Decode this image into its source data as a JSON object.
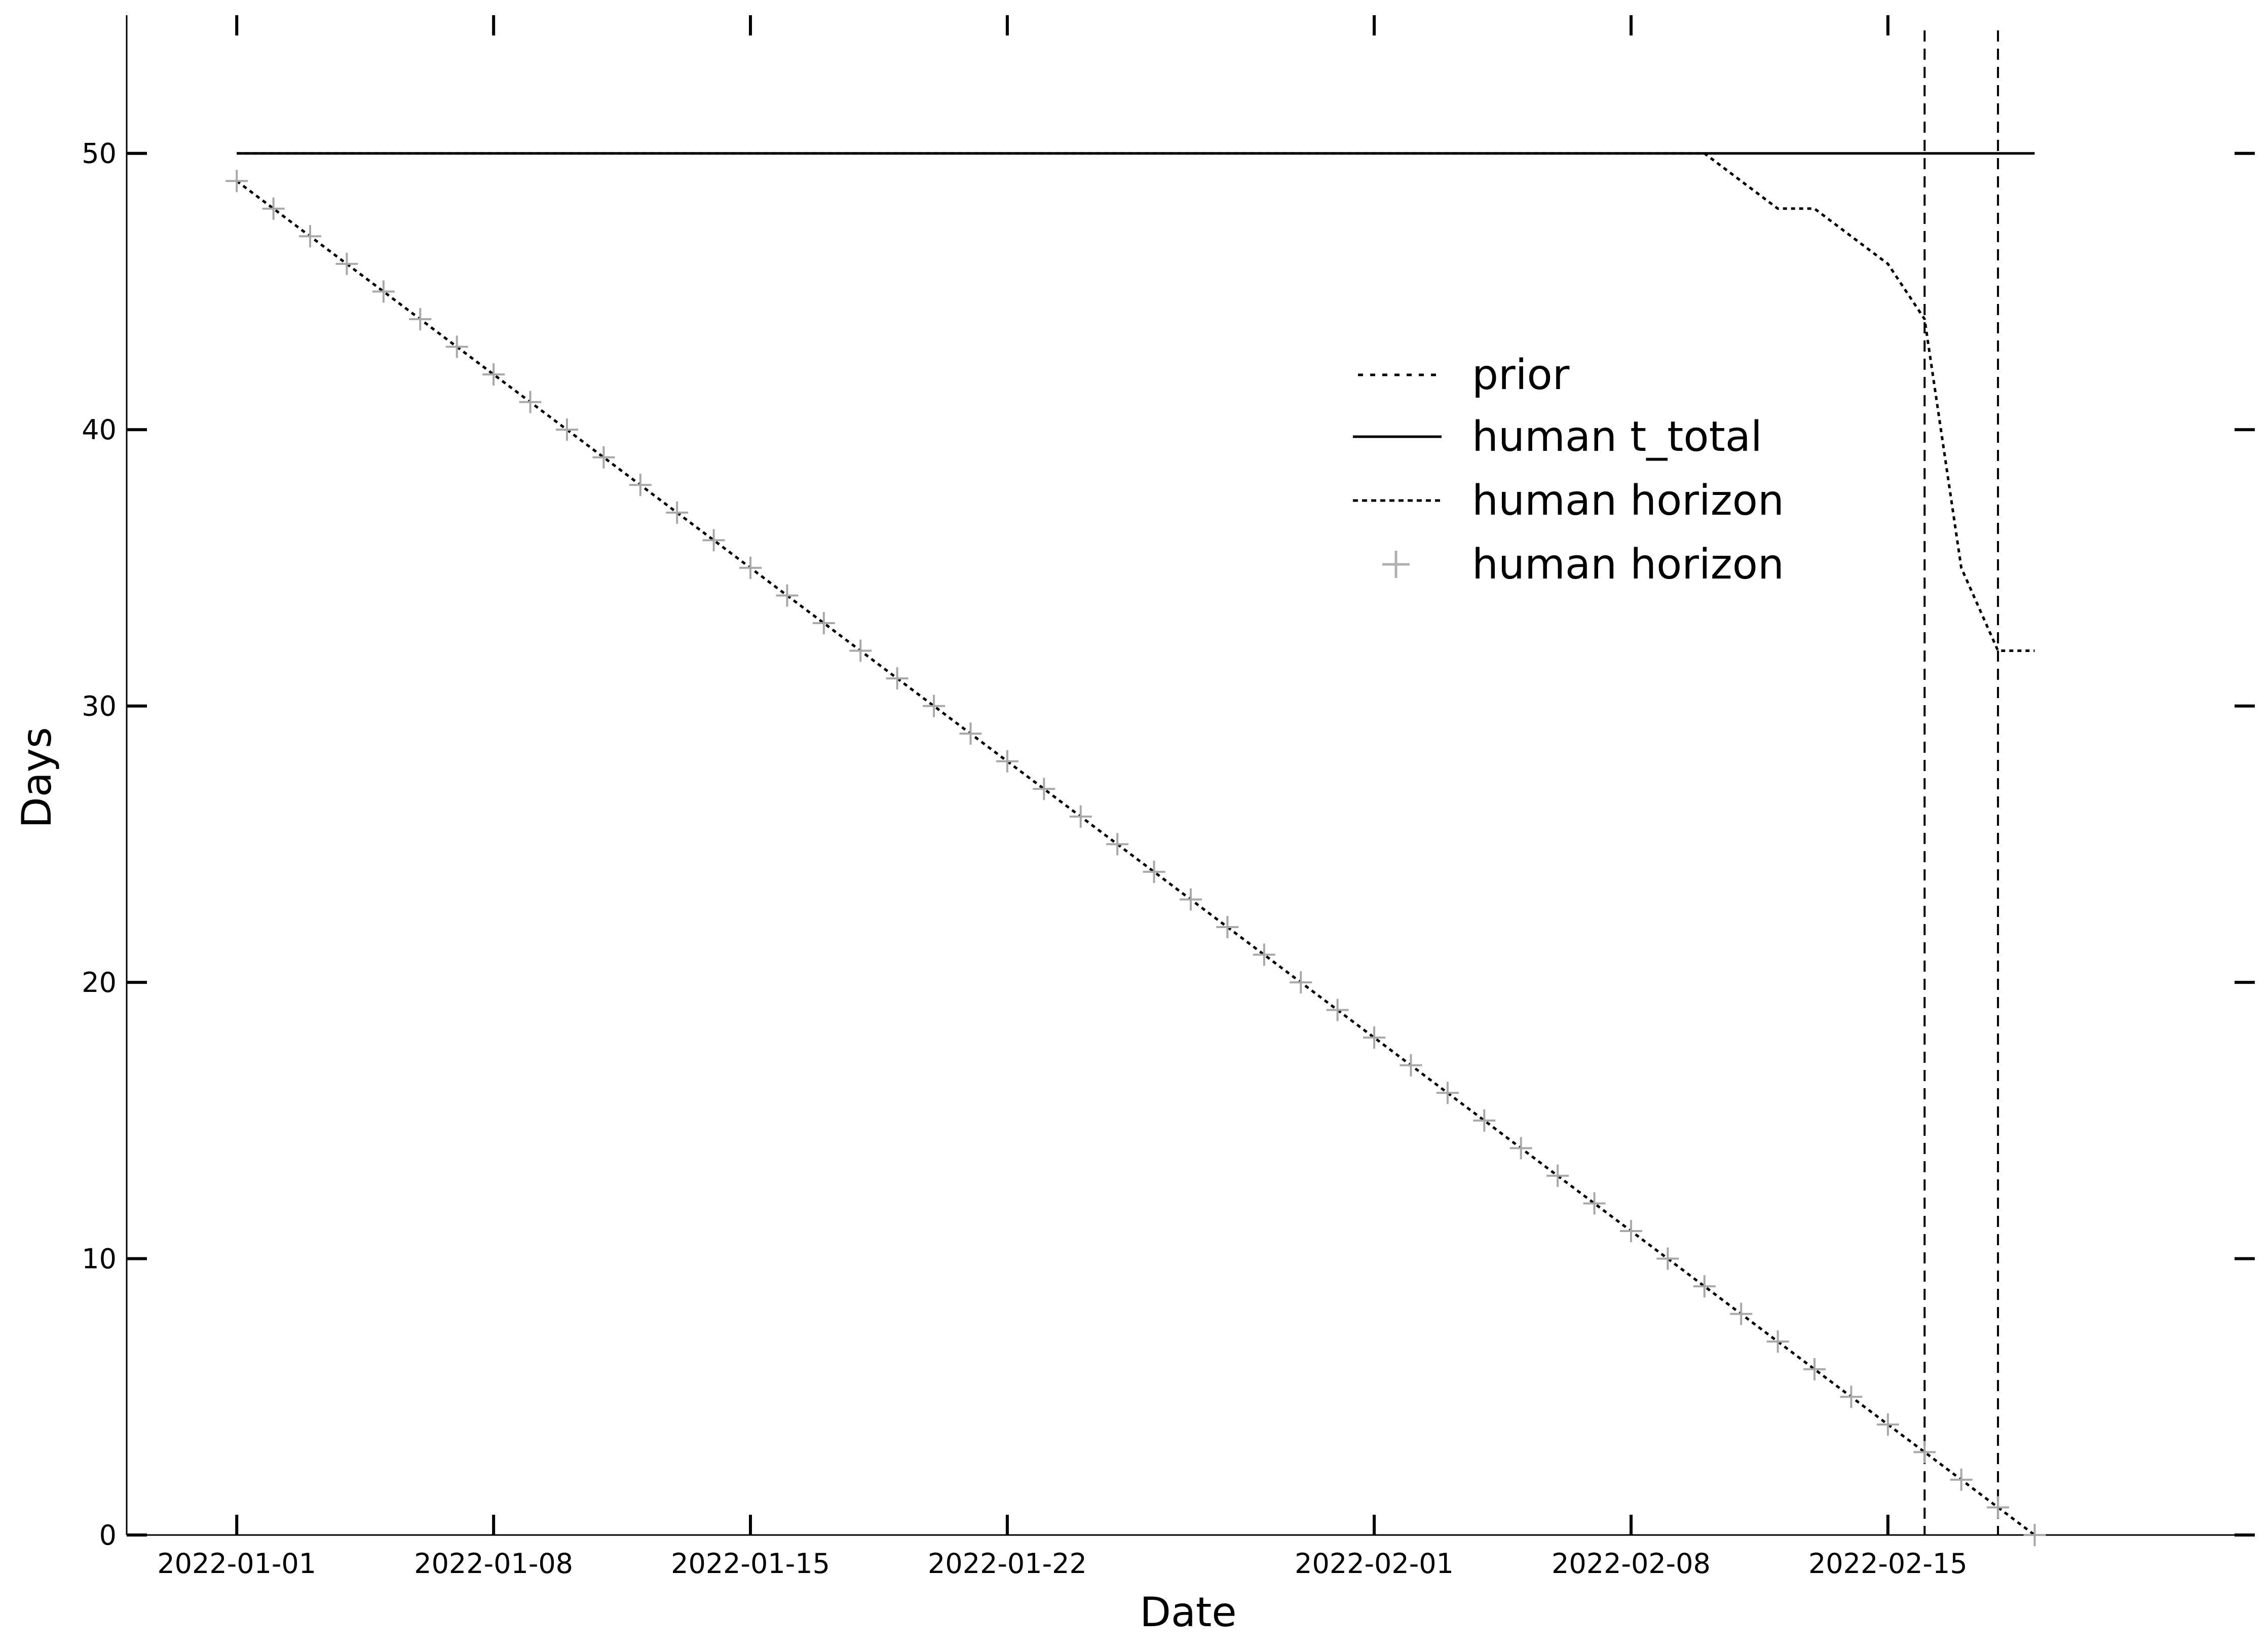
{
  "chart_data": {
    "type": "line",
    "title": "",
    "xlabel": "Date",
    "ylabel": "Days",
    "xlim": [
      "2021-12-29",
      "2022-02-25"
    ],
    "ylim": [
      0,
      55
    ],
    "x_ticks": [
      "2022-01-01",
      "2022-01-08",
      "2022-01-15",
      "2022-01-22",
      "2022-02-01",
      "2022-02-08",
      "2022-02-15"
    ],
    "y_ticks": [
      0,
      10,
      20,
      30,
      40,
      50
    ],
    "grid": false,
    "legend_position": "upper-center-right",
    "legend": [
      {
        "label": "prior",
        "style": "dotted-line",
        "color": "#000000"
      },
      {
        "label": "human t_total",
        "style": "solid-line",
        "color": "#000000"
      },
      {
        "label": "human horizon",
        "style": "dotted-line",
        "color": "#000000"
      },
      {
        "label": "human horizon",
        "style": "plus-marker",
        "color": "#b0b0b0"
      }
    ],
    "series": [
      {
        "name": "prior",
        "style": "dotted",
        "points": [
          [
            "2022-01-01",
            50
          ],
          [
            "2022-02-10",
            50
          ],
          [
            "2022-02-11",
            49
          ],
          [
            "2022-02-12",
            48
          ],
          [
            "2022-02-13",
            48
          ],
          [
            "2022-02-14",
            47
          ],
          [
            "2022-02-15",
            46
          ],
          [
            "2022-02-16",
            44
          ],
          [
            "2022-02-17",
            35
          ],
          [
            "2022-02-18",
            32
          ],
          [
            "2022-02-19",
            32
          ]
        ]
      },
      {
        "name": "human t_total",
        "style": "solid",
        "points": [
          [
            "2022-01-01",
            50
          ],
          [
            "2022-02-19",
            50
          ]
        ]
      },
      {
        "name": "human horizon",
        "style": "dotted",
        "points": [
          [
            "2022-01-01",
            49
          ],
          [
            "2022-02-19",
            0
          ]
        ]
      },
      {
        "name": "human horizon",
        "style": "plus-markers",
        "start_date": "2022-01-01",
        "values": [
          49,
          48,
          47,
          46,
          45,
          44,
          43,
          42,
          41,
          40,
          39,
          38,
          37,
          36,
          35,
          34,
          33,
          32,
          31,
          30,
          29,
          28,
          27,
          26,
          25,
          24,
          23,
          22,
          21,
          20,
          19,
          18,
          17,
          16,
          15,
          14,
          13,
          12,
          11,
          10,
          9,
          8,
          7,
          6,
          5,
          4,
          3,
          2,
          1,
          0
        ]
      }
    ],
    "vertical_lines": [
      {
        "x": "2022-02-16",
        "style": "dashed"
      },
      {
        "x": "2022-02-18",
        "style": "dashed"
      }
    ]
  }
}
